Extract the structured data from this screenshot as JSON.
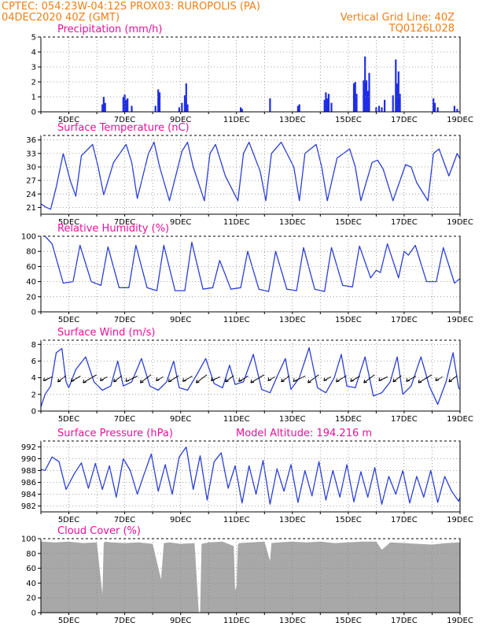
{
  "header": {
    "line1": "CPTEC:   054:23W-04:12S   PROX03: RUROPOLIS (PA)",
    "line2_left": "04DEC2020 40Z (GMT)",
    "line2_right": "Vertical Grid Line: 40Z",
    "line3_right": "TQ0126L028"
  },
  "colors": {
    "header_text": "#f07f12",
    "panel_title": "#e8109a",
    "series_line": "#2a3fd6",
    "precip_bars": "#1f2ee6",
    "wind_arrows": "#000000",
    "cloud_fill": "#a8a8a8"
  },
  "x_labels": [
    "5DEC",
    "7DEC",
    "9DEC",
    "11DEC",
    "13DEC",
    "15DEC",
    "17DEC",
    "19DEC"
  ],
  "chart_data": [
    {
      "type": "bar",
      "title": "Precipitation (mm/h)",
      "x_unit": "days",
      "x_range": [
        4.0,
        19.0
      ],
      "ylim": [
        0,
        5
      ],
      "yticks": [
        0,
        1,
        2,
        3,
        4,
        5
      ],
      "grid": true,
      "x": [
        6.2,
        6.25,
        6.3,
        6.95,
        7.0,
        7.05,
        7.1,
        7.25,
        8.1,
        8.2,
        8.25,
        8.95,
        9.05,
        9.15,
        9.2,
        9.25,
        11.15,
        11.2,
        12.2,
        13.2,
        13.25,
        14.15,
        14.2,
        14.25,
        14.3,
        14.4,
        15.2,
        15.25,
        15.3,
        15.55,
        15.6,
        15.65,
        15.7,
        15.75,
        16.0,
        16.1,
        16.2,
        16.3,
        16.6,
        16.7,
        16.75,
        16.8,
        16.85,
        18.05,
        18.1,
        18.2,
        18.8,
        18.9
      ],
      "values": [
        0.5,
        1.0,
        0.6,
        1.0,
        1.15,
        0.8,
        0.9,
        0.4,
        0.4,
        1.5,
        1.3,
        0.3,
        0.6,
        1.1,
        1.9,
        0.5,
        0.3,
        0.2,
        0.9,
        0.4,
        0.5,
        0.8,
        1.3,
        0.9,
        1.2,
        0.6,
        1.9,
        2.0,
        1.2,
        2.1,
        3.7,
        2.1,
        1.4,
        2.6,
        0.3,
        0.4,
        0.3,
        0.8,
        1.1,
        3.5,
        1.9,
        2.7,
        1.2,
        0.9,
        0.6,
        0.3,
        0.4,
        0.2
      ]
    },
    {
      "type": "line",
      "title": "Surface Temperature (nC)",
      "x_unit": "days",
      "x_range": [
        4.0,
        19.0
      ],
      "ylim": [
        19.5,
        37
      ],
      "yticks": [
        21,
        24,
        27,
        30,
        33,
        36
      ],
      "grid": true,
      "x": [
        4.0,
        4.2,
        4.35,
        4.55,
        4.8,
        5.05,
        5.25,
        5.45,
        5.85,
        6.05,
        6.25,
        6.6,
        7.05,
        7.25,
        7.45,
        7.85,
        8.05,
        8.25,
        8.6,
        9.05,
        9.25,
        9.45,
        9.85,
        10.05,
        10.25,
        10.6,
        11.05,
        11.25,
        11.45,
        11.85,
        12.05,
        12.25,
        12.6,
        13.05,
        13.25,
        13.45,
        13.85,
        14.05,
        14.25,
        14.6,
        15.05,
        15.25,
        15.45,
        15.85,
        16.05,
        16.25,
        16.6,
        17.05,
        17.25,
        17.45,
        17.85,
        18.05,
        18.25,
        18.6,
        18.9,
        19.0
      ],
      "values": [
        21.8,
        21.0,
        20.6,
        25.5,
        33.0,
        27.0,
        23.5,
        32.5,
        35.0,
        30.0,
        23.8,
        31.0,
        35.0,
        31.0,
        23.0,
        33.0,
        35.5,
        30.0,
        22.5,
        33.5,
        35.5,
        30.0,
        22.5,
        33.0,
        35.0,
        28.0,
        22.5,
        33.0,
        35.5,
        29.0,
        22.5,
        33.0,
        35.5,
        30.0,
        22.5,
        33.0,
        35.0,
        30.0,
        22.5,
        32.0,
        34.0,
        30.0,
        22.5,
        31.0,
        31.5,
        29.5,
        22.5,
        30.5,
        30.0,
        26.5,
        22.5,
        33.0,
        34.0,
        28.0,
        33.0,
        31.8
      ]
    },
    {
      "type": "line",
      "title": "Relative Humidity (%)",
      "x_unit": "days",
      "x_range": [
        4.0,
        19.0
      ],
      "ylim": [
        0,
        100
      ],
      "yticks": [
        0,
        20,
        40,
        60,
        80,
        100
      ],
      "grid": true,
      "x": [
        4.0,
        4.15,
        4.4,
        4.8,
        5.15,
        5.4,
        5.8,
        6.15,
        6.4,
        6.8,
        7.15,
        7.4,
        7.8,
        8.15,
        8.4,
        8.8,
        9.15,
        9.4,
        9.8,
        10.15,
        10.4,
        10.8,
        11.15,
        11.4,
        11.8,
        12.15,
        12.4,
        12.8,
        13.15,
        13.4,
        13.8,
        14.15,
        14.4,
        14.8,
        15.15,
        15.4,
        15.8,
        16.0,
        16.15,
        16.4,
        16.8,
        17.0,
        17.15,
        17.4,
        17.8,
        18.15,
        18.4,
        18.8,
        19.0
      ],
      "values": [
        100,
        100,
        90,
        38,
        40,
        88,
        40,
        35,
        86,
        32,
        32,
        88,
        32,
        28,
        88,
        28,
        28,
        92,
        30,
        32,
        68,
        30,
        32,
        80,
        30,
        27,
        80,
        30,
        28,
        85,
        30,
        27,
        85,
        35,
        33,
        87,
        45,
        55,
        52,
        90,
        45,
        80,
        75,
        88,
        40,
        40,
        85,
        38,
        44
      ]
    },
    {
      "type": "line",
      "title": "Surface Wind (m/s)",
      "x_unit": "days",
      "x_range": [
        4.0,
        19.0
      ],
      "ylim": [
        0,
        8.5
      ],
      "yticks": [
        0,
        2,
        4,
        6,
        8
      ],
      "grid": true,
      "x": [
        4.0,
        4.15,
        4.35,
        4.55,
        4.75,
        4.9,
        5.0,
        5.25,
        5.6,
        5.9,
        6.2,
        6.5,
        6.75,
        6.95,
        7.25,
        7.6,
        7.9,
        8.2,
        8.5,
        8.75,
        8.95,
        9.25,
        9.6,
        9.9,
        10.2,
        10.5,
        10.75,
        10.95,
        11.25,
        11.6,
        11.9,
        12.2,
        12.5,
        12.75,
        12.95,
        13.25,
        13.6,
        13.9,
        14.2,
        14.5,
        14.75,
        14.95,
        15.25,
        15.6,
        15.9,
        16.2,
        16.5,
        16.75,
        16.95,
        17.25,
        17.6,
        17.9,
        18.2,
        18.5,
        18.75,
        18.95,
        19.0
      ],
      "values": [
        0.5,
        2.0,
        3.0,
        7.0,
        7.5,
        3.5,
        2.8,
        5.0,
        6.5,
        3.5,
        2.5,
        3.0,
        6.0,
        3.0,
        3.5,
        6.3,
        3.0,
        2.5,
        3.5,
        6.0,
        2.8,
        2.5,
        4.5,
        6.3,
        3.3,
        2.8,
        5.5,
        3.2,
        3.5,
        6.8,
        2.6,
        2.2,
        4.5,
        6.3,
        2.6,
        4.0,
        7.6,
        2.8,
        2.2,
        4.0,
        6.8,
        3.0,
        2.8,
        6.5,
        1.8,
        2.2,
        3.5,
        6.5,
        2.0,
        3.0,
        6.5,
        3.0,
        0.8,
        3.5,
        7.0,
        2.8,
        2.6
      ],
      "wind_vector_times": [
        4.25,
        4.75,
        5.25,
        5.75,
        6.25,
        6.75,
        7.25,
        7.75,
        8.25,
        8.75,
        9.25,
        9.75,
        10.25,
        10.75,
        11.25,
        11.75,
        12.25,
        12.75,
        13.25,
        13.75,
        14.25,
        14.75,
        15.25,
        15.75,
        16.25,
        16.75,
        17.25,
        17.75,
        18.25,
        18.75
      ]
    },
    {
      "type": "line",
      "title": "Surface Pressure (hPa)",
      "annotation": "Model Altitude: 194.216  m",
      "x_unit": "days",
      "x_range": [
        4.0,
        19.0
      ],
      "ylim": [
        981,
        993
      ],
      "yticks": [
        982,
        984,
        986,
        988,
        990,
        992
      ],
      "grid": true,
      "x": [
        4.0,
        4.15,
        4.4,
        4.65,
        4.9,
        5.2,
        5.45,
        5.7,
        5.95,
        6.2,
        6.45,
        6.7,
        6.95,
        7.2,
        7.45,
        7.7,
        7.95,
        8.2,
        8.45,
        8.7,
        8.95,
        9.2,
        9.45,
        9.7,
        9.95,
        10.2,
        10.45,
        10.7,
        10.95,
        11.2,
        11.45,
        11.7,
        11.95,
        12.2,
        12.45,
        12.7,
        12.95,
        13.2,
        13.45,
        13.7,
        13.95,
        14.2,
        14.45,
        14.7,
        14.95,
        15.2,
        15.45,
        15.7,
        15.95,
        16.2,
        16.45,
        16.7,
        16.95,
        17.2,
        17.45,
        17.7,
        17.95,
        18.2,
        18.45,
        18.7,
        18.95,
        19.0
      ],
      "values": [
        988.2,
        988.0,
        990.3,
        989.5,
        984.8,
        987.5,
        989.3,
        985.0,
        989.2,
        984.8,
        988.8,
        983.5,
        990.0,
        988.0,
        984.0,
        987.5,
        990.8,
        984.5,
        989.0,
        984.0,
        990.3,
        992.0,
        984.8,
        990.5,
        983.0,
        989.5,
        991.0,
        985.0,
        988.8,
        982.5,
        988.8,
        984.0,
        989.7,
        982.3,
        988.3,
        984.5,
        989.0,
        982.6,
        988.0,
        983.7,
        989.5,
        983.0,
        988.0,
        983.5,
        989.0,
        982.7,
        987.8,
        983.5,
        988.5,
        982.3,
        987.0,
        984.0,
        988.0,
        982.5,
        987.0,
        983.5,
        988.0,
        982.6,
        987.0,
        984.5,
        982.8,
        983.5
      ]
    },
    {
      "type": "area",
      "title": "Cloud Cover (%)",
      "x_unit": "days",
      "x_range": [
        4.0,
        19.0
      ],
      "ylim": [
        0,
        100
      ],
      "yticks": [
        0,
        20,
        40,
        60,
        80,
        100
      ],
      "grid": true,
      "x": [
        4.0,
        4.5,
        5.0,
        5.5,
        6.0,
        6.2,
        6.25,
        6.3,
        6.5,
        7.0,
        7.5,
        8.0,
        8.3,
        8.35,
        8.4,
        8.6,
        9.0,
        9.5,
        9.65,
        9.7,
        9.75,
        10.0,
        10.5,
        10.9,
        10.95,
        11.0,
        11.05,
        11.1,
        11.5,
        12.0,
        12.2,
        12.25,
        12.5,
        13.0,
        13.5,
        14.0,
        14.5,
        15.0,
        15.5,
        16.0,
        16.2,
        16.5,
        17.0,
        17.5,
        18.0,
        18.5,
        19.0
      ],
      "values": [
        96,
        95,
        96,
        94,
        95,
        25,
        94,
        96,
        95,
        94,
        95,
        93,
        45,
        70,
        94,
        95,
        93,
        94,
        0,
        0,
        93,
        95,
        96,
        90,
        30,
        35,
        92,
        94,
        95,
        96,
        70,
        94,
        95,
        96,
        95,
        96,
        94,
        95,
        96,
        96,
        85,
        95,
        94,
        93,
        92,
        94,
        95
      ]
    }
  ]
}
